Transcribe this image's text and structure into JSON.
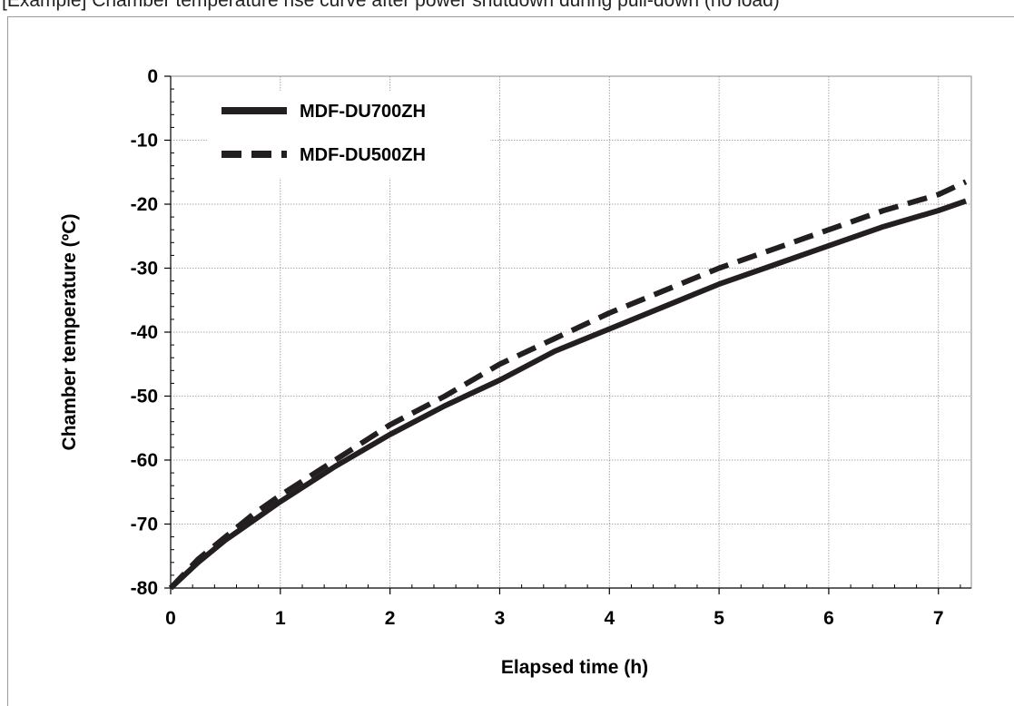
{
  "header": {
    "text": "[Example] Chamber temperature rise curve after power shutdown during pull-down (no load)"
  },
  "chart_data": {
    "type": "line",
    "title": "",
    "xlabel": "Elapsed time (h)",
    "ylabel": "Chamber temperature (ºC)",
    "xlim": [
      0,
      7.3
    ],
    "ylim": [
      -80,
      0
    ],
    "x_ticks": [
      0,
      1,
      2,
      3,
      4,
      5,
      6,
      7
    ],
    "y_ticks": [
      0,
      -10,
      -20,
      -30,
      -40,
      -50,
      -60,
      -70,
      -80
    ],
    "x_tick_labels": [
      "0",
      "1",
      "2",
      "3",
      "4",
      "5",
      "6",
      "7"
    ],
    "y_tick_labels": [
      "0",
      "-10",
      "-20",
      "-30",
      "-40",
      "-50",
      "-60",
      "-70",
      "-80"
    ],
    "grid": true,
    "legend_position": "top-left",
    "series": [
      {
        "name": "MDF-DU700ZH",
        "style": "solid",
        "color": "#231f20",
        "x": [
          0,
          0.25,
          0.5,
          0.75,
          1,
          1.5,
          2,
          2.5,
          3,
          3.5,
          4,
          4.5,
          5,
          5.5,
          6,
          6.5,
          7,
          7.25
        ],
        "y": [
          -80,
          -76,
          -72.5,
          -69.5,
          -66.5,
          -61,
          -56,
          -51.5,
          -47.5,
          -43,
          -39.5,
          -36,
          -32.5,
          -29.5,
          -26.5,
          -23.5,
          -21,
          -19.5
        ]
      },
      {
        "name": "MDF-DU500ZH",
        "style": "dashed",
        "color": "#231f20",
        "x": [
          0,
          0.25,
          0.5,
          0.75,
          1,
          1.5,
          2,
          2.5,
          3,
          3.5,
          4,
          4.5,
          5,
          5.5,
          6,
          6.5,
          7,
          7.25
        ],
        "y": [
          -80,
          -75.5,
          -72,
          -68.5,
          -65.5,
          -60,
          -54.5,
          -50,
          -45,
          -41,
          -37,
          -33.5,
          -30,
          -27,
          -24,
          -21,
          -18.5,
          -16.5
        ]
      }
    ]
  }
}
